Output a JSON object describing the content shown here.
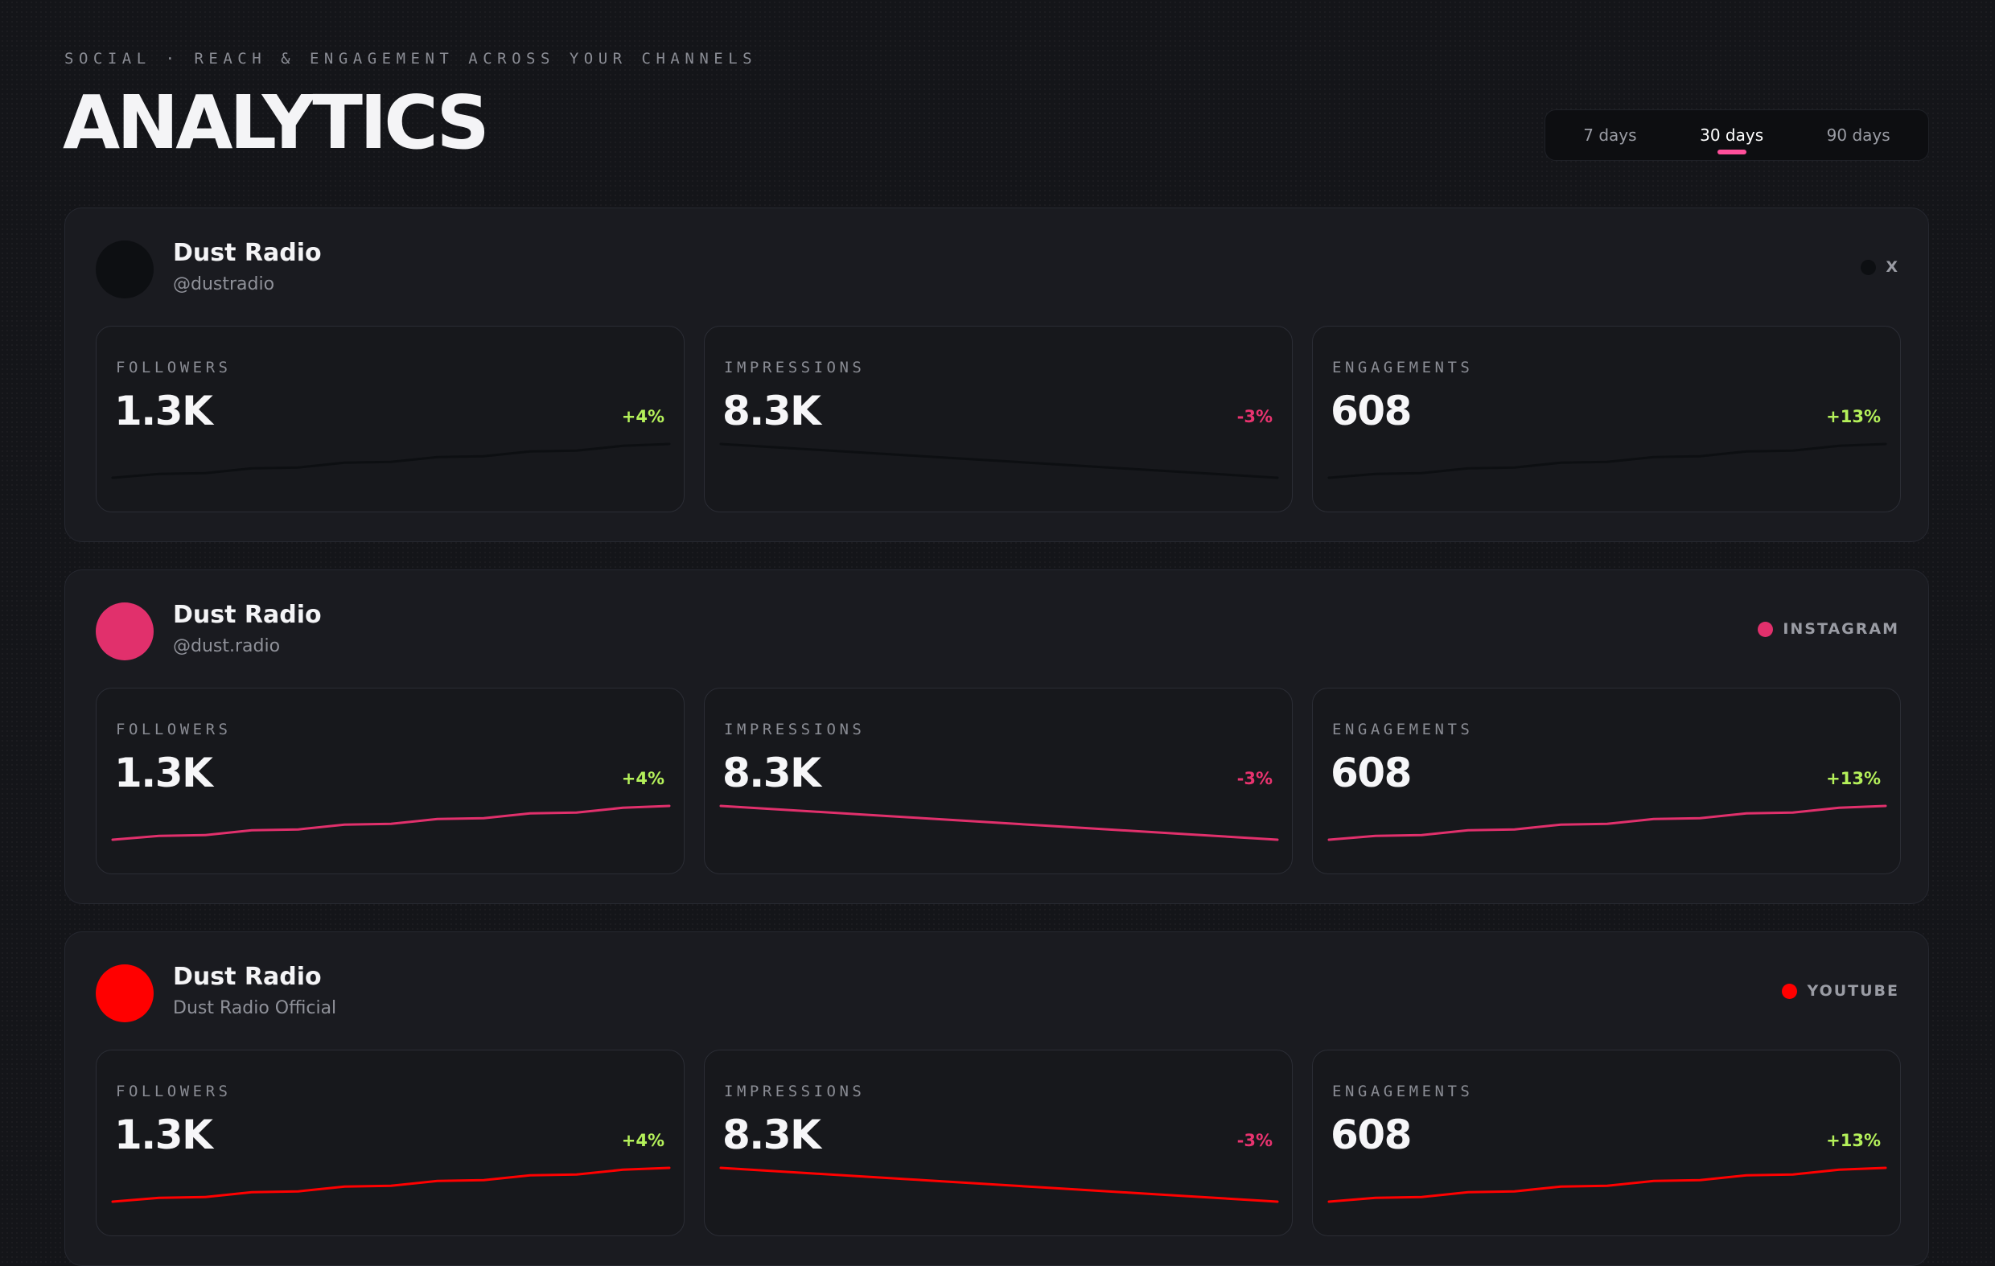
{
  "header": {
    "eyebrow": "SOCIAL · REACH & ENGAGEMENT ACROSS YOUR CHANNELS",
    "title": "ANALYTICS"
  },
  "range_tabs": [
    {
      "label": "7 days",
      "active": false
    },
    {
      "label": "30 days",
      "active": true
    },
    {
      "label": "90 days",
      "active": false
    }
  ],
  "accent_color": "#ff4f9a",
  "accounts": [
    {
      "name": "Dust Radio",
      "handle": "@dustradio",
      "platform": "X",
      "color": "#0d0f12",
      "metrics": [
        {
          "label": "FOLLOWERS",
          "value": "1.3K",
          "delta": "+4%",
          "trend": "up"
        },
        {
          "label": "IMPRESSIONS",
          "value": "8.3K",
          "delta": "-3%",
          "trend": "down"
        },
        {
          "label": "ENGAGEMENTS",
          "value": "608",
          "delta": "+13%",
          "trend": "up"
        }
      ]
    },
    {
      "name": "Dust Radio",
      "handle": "@dust.radio",
      "platform": "INSTAGRAM",
      "color": "#e1306c",
      "metrics": [
        {
          "label": "FOLLOWERS",
          "value": "1.3K",
          "delta": "+4%",
          "trend": "up"
        },
        {
          "label": "IMPRESSIONS",
          "value": "8.3K",
          "delta": "-3%",
          "trend": "down"
        },
        {
          "label": "ENGAGEMENTS",
          "value": "608",
          "delta": "+13%",
          "trend": "up"
        }
      ]
    },
    {
      "name": "Dust Radio",
      "handle": "Dust Radio Official",
      "platform": "YOUTUBE",
      "color": "#ff0000",
      "metrics": [
        {
          "label": "FOLLOWERS",
          "value": "1.3K",
          "delta": "+4%",
          "trend": "up"
        },
        {
          "label": "IMPRESSIONS",
          "value": "8.3K",
          "delta": "-3%",
          "trend": "down"
        },
        {
          "label": "ENGAGEMENTS",
          "value": "608",
          "delta": "+13%",
          "trend": "up"
        }
      ]
    }
  ]
}
